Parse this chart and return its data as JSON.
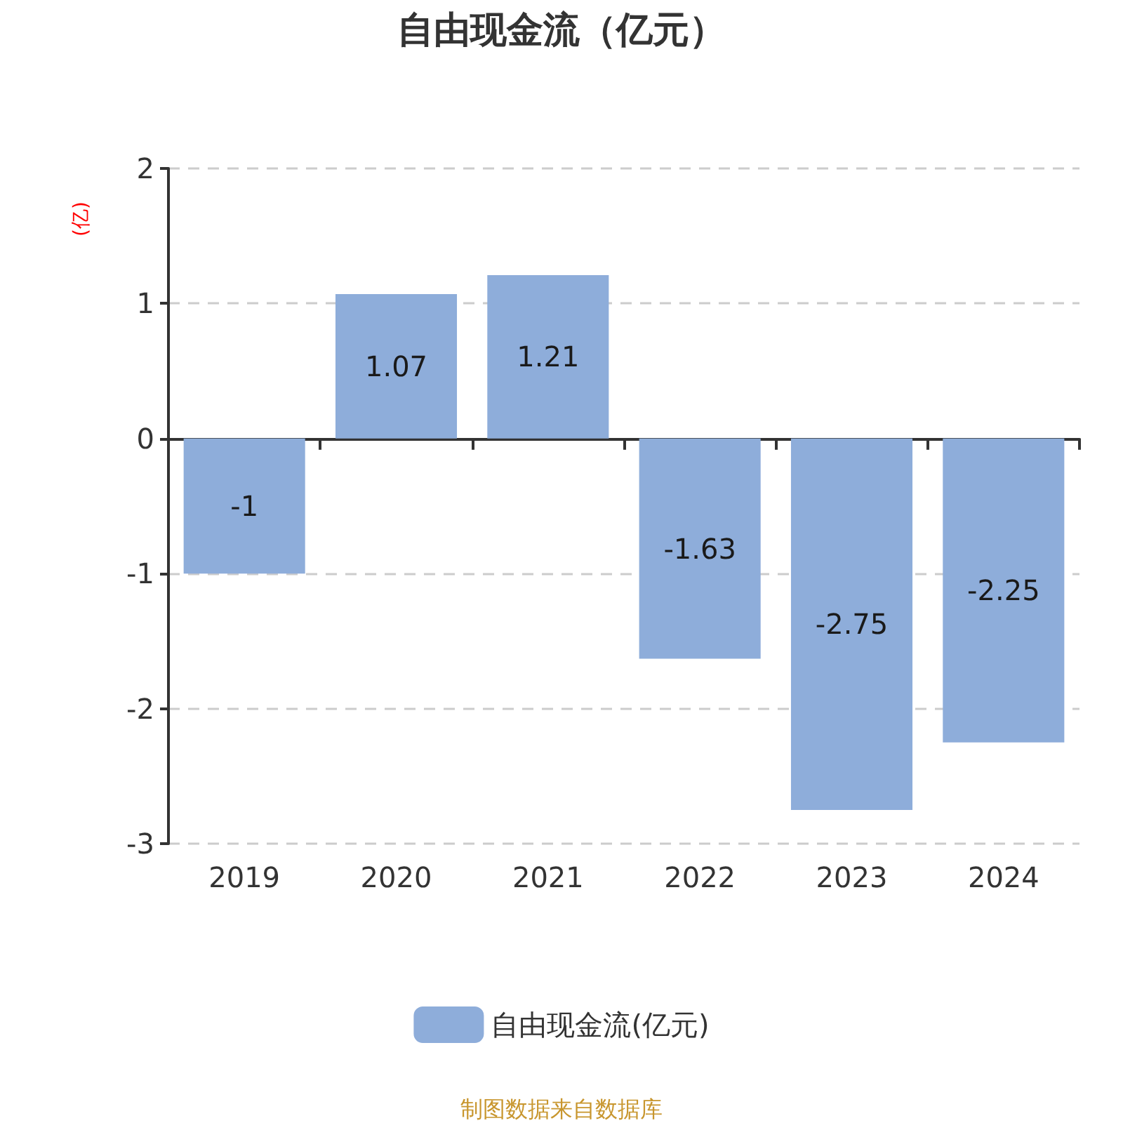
{
  "chart_data": {
    "type": "bar",
    "title": "自由现金流（亿元）",
    "ylabel": "(亿)",
    "categories": [
      "2019",
      "2020",
      "2021",
      "2022",
      "2023",
      "2024"
    ],
    "series": [
      {
        "name": "自由现金流(亿元)",
        "color": "#8eadda",
        "values": [
          -1,
          1.07,
          1.21,
          -1.63,
          -2.75,
          -2.25
        ]
      }
    ],
    "ylim": [
      -3,
      2
    ],
    "yticks": [
      -3,
      -2,
      -1,
      0,
      1,
      2
    ],
    "grid": "y",
    "legend": "bottom",
    "data_labels": true,
    "annotations": [
      "制图数据来自数据库"
    ]
  }
}
